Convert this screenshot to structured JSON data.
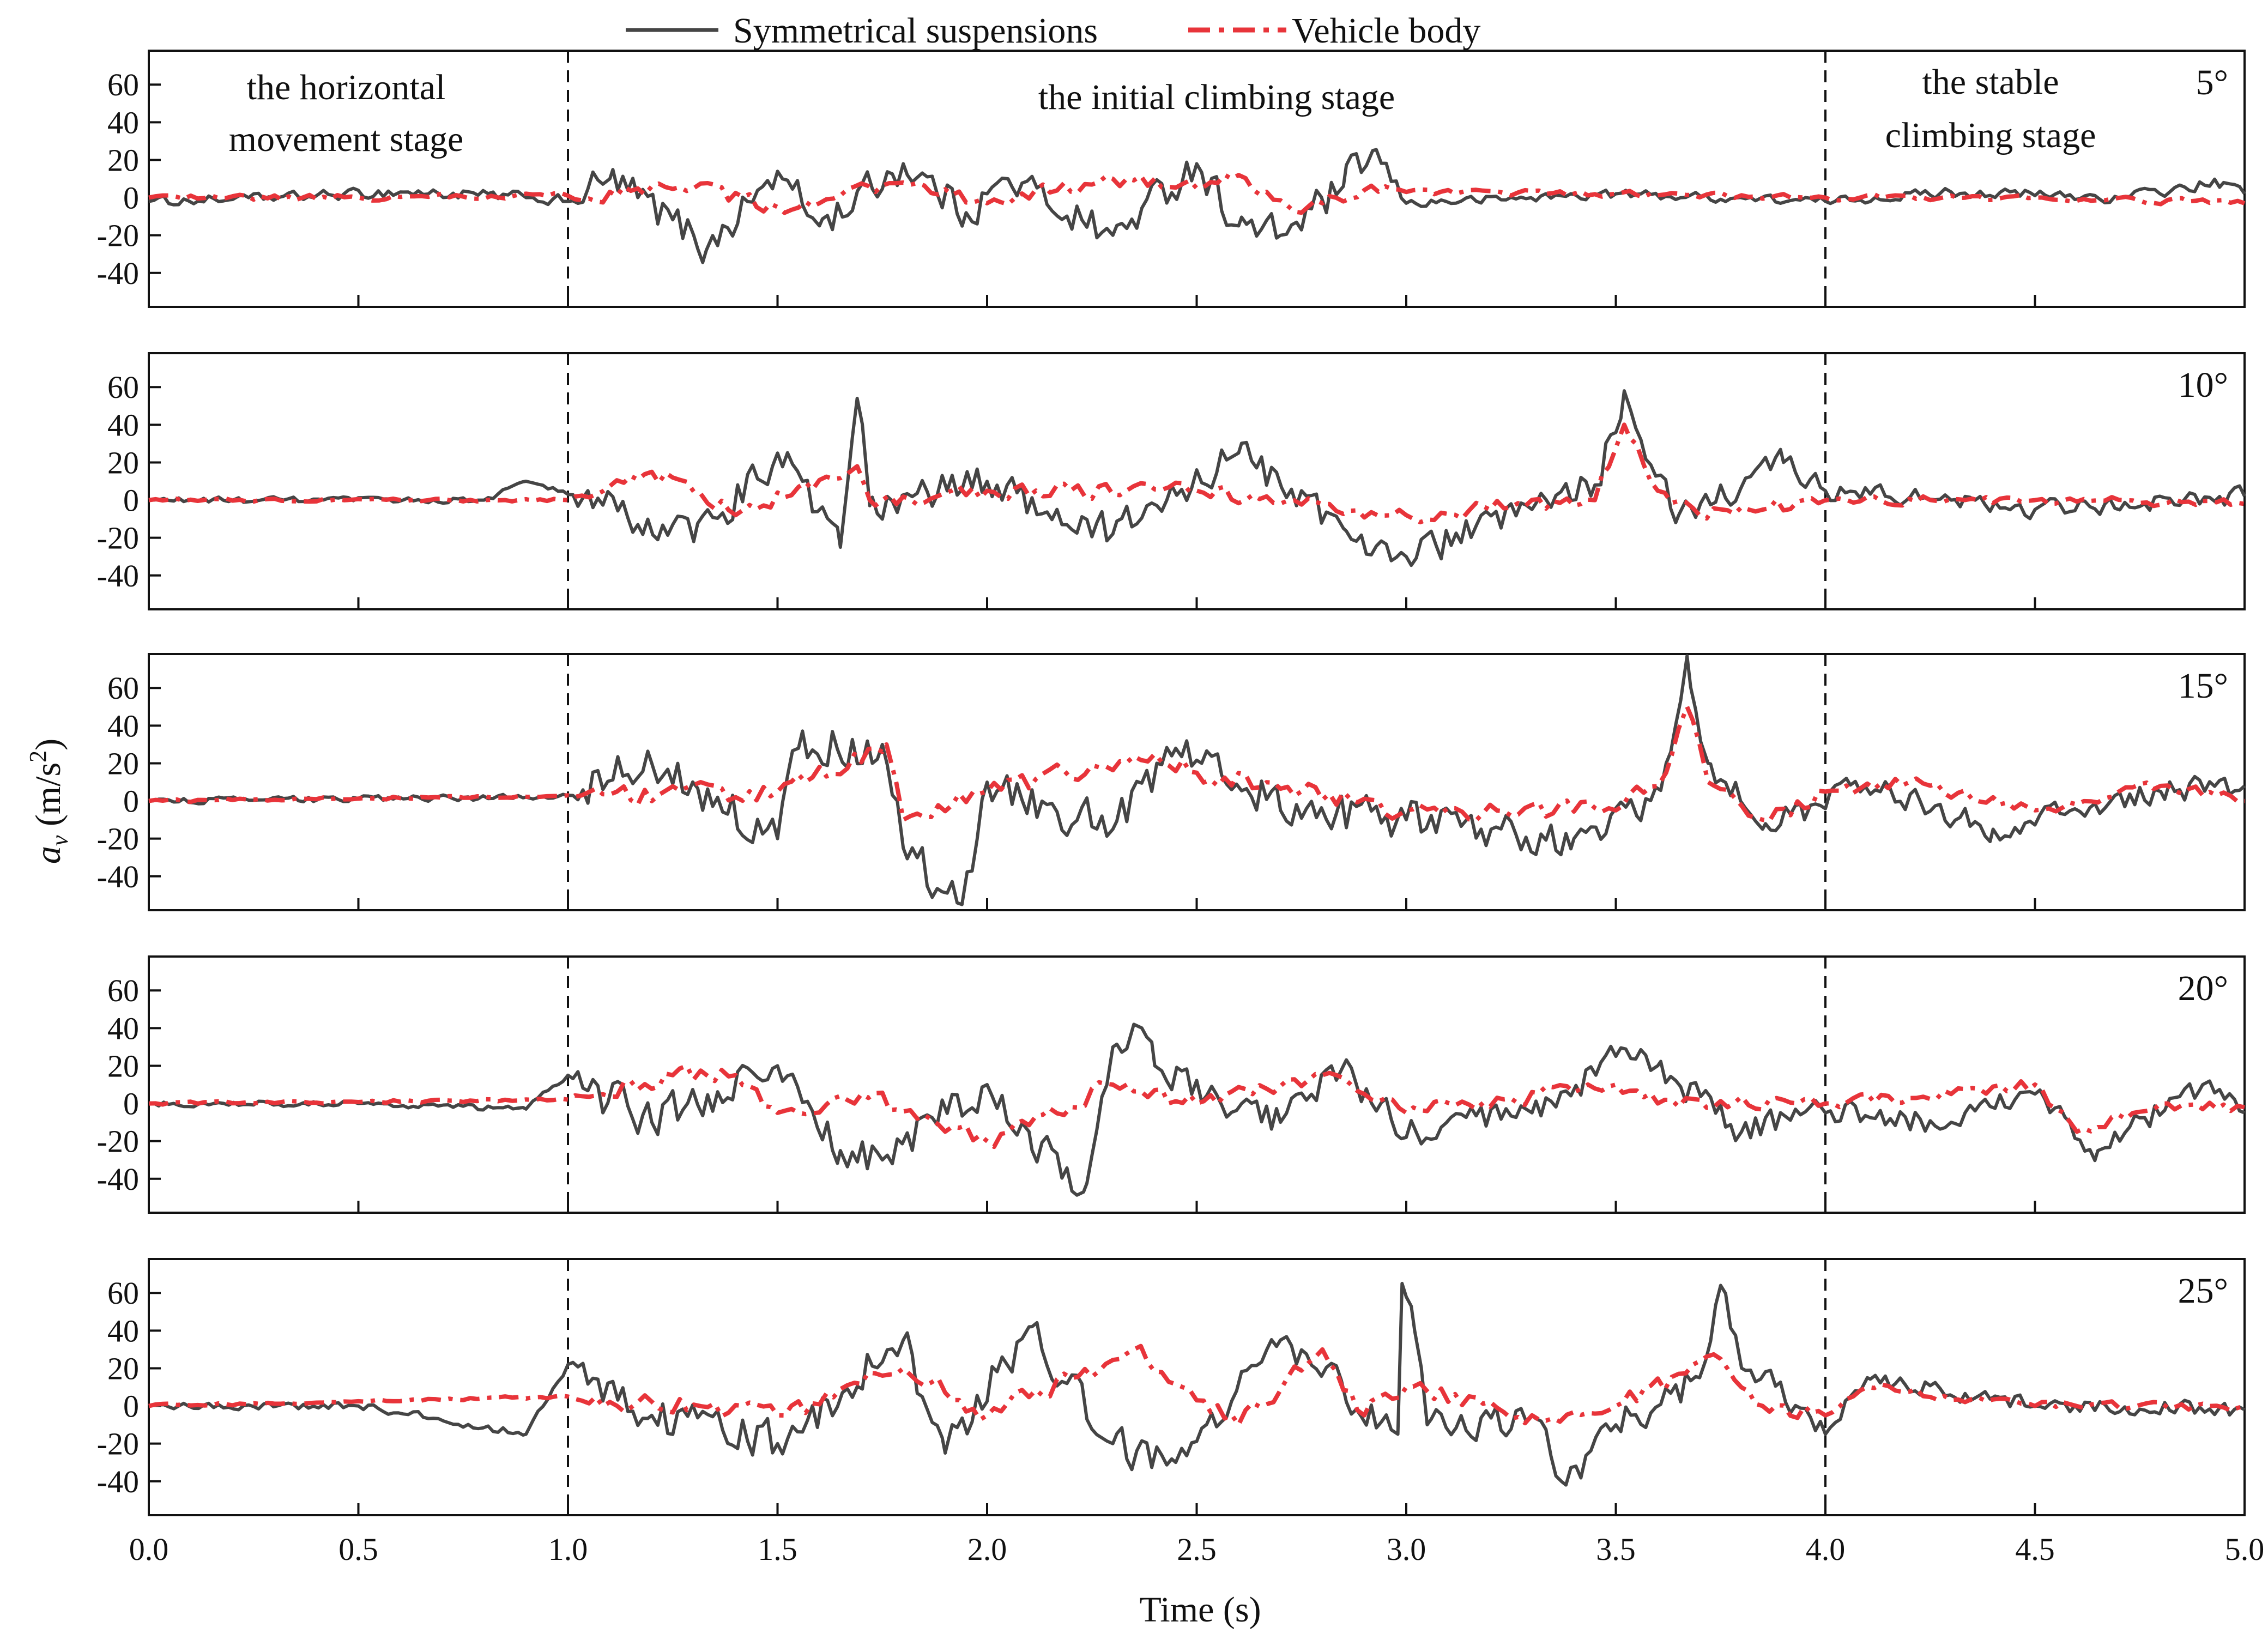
{
  "legend": {
    "placement": "top-center",
    "entries": [
      {
        "label": "Symmetrical suspensions",
        "color": "#454545",
        "style": "solid"
      },
      {
        "label": "Vehicle body",
        "color": "#e8343a",
        "style": "dash-dot"
      }
    ]
  },
  "axes": {
    "xlabel": "Time (s)",
    "ylabel_symbol": "a",
    "ylabel_subscript": "v",
    "ylabel_unit_open": " (m/s",
    "ylabel_unit_power": "2",
    "ylabel_unit_close": ")"
  },
  "stage_labels": {
    "horizontal_line1": "the horizontal",
    "horizontal_line2": "movement stage",
    "initial": "the initial climbing stage",
    "stable_line1": "the stable",
    "stable_line2": "climbing stage"
  },
  "chart_data": [
    {
      "type": "line",
      "panel": "5°",
      "xlim": [
        0,
        5
      ],
      "ylim": [
        -58,
        78
      ],
      "xticks": [
        0,
        0.5,
        1,
        1.5,
        2,
        2.5,
        3,
        3.5,
        4,
        4.5,
        5
      ],
      "yticks": [
        -40,
        -20,
        0,
        20,
        40,
        60
      ],
      "stage_boundaries": [
        1.0,
        4.0
      ],
      "anchors": {
        "susp": [
          [
            0,
            -2
          ],
          [
            0.2,
            -1
          ],
          [
            0.6,
            3
          ],
          [
            0.9,
            0
          ],
          [
            1.0,
            -2
          ],
          [
            1.1,
            10
          ],
          [
            1.3,
            -20
          ],
          [
            1.33,
            -28
          ],
          [
            1.5,
            14
          ],
          [
            1.6,
            -15
          ],
          [
            1.8,
            18
          ],
          [
            1.95,
            -8
          ],
          [
            2.05,
            10
          ],
          [
            2.3,
            -20
          ],
          [
            2.5,
            18
          ],
          [
            2.6,
            -15
          ],
          [
            2.7,
            -20
          ],
          [
            2.85,
            6
          ],
          [
            2.92,
            25
          ],
          [
            3.0,
            -3
          ],
          [
            3.5,
            2
          ],
          [
            4.0,
            -2
          ],
          [
            4.3,
            3
          ],
          [
            4.7,
            0
          ],
          [
            4.95,
            8
          ],
          [
            5.0,
            2
          ]
        ],
        "body": [
          [
            0,
            0
          ],
          [
            0.5,
            0
          ],
          [
            1.0,
            1
          ],
          [
            1.3,
            5
          ],
          [
            1.5,
            -5
          ],
          [
            1.8,
            8
          ],
          [
            2.0,
            -3
          ],
          [
            2.3,
            10
          ],
          [
            2.5,
            5
          ],
          [
            2.6,
            12
          ],
          [
            2.75,
            -8
          ],
          [
            2.9,
            4
          ],
          [
            3.0,
            3
          ],
          [
            3.5,
            2
          ],
          [
            4.0,
            0
          ],
          [
            4.5,
            0
          ],
          [
            5.0,
            -3
          ]
        ]
      },
      "amplitude": {
        "susp": [
          [
            0,
            3
          ],
          [
            1,
            4
          ],
          [
            1.05,
            12
          ],
          [
            2.9,
            12
          ],
          [
            3.0,
            3
          ],
          [
            4,
            3
          ],
          [
            5,
            4
          ]
        ],
        "body": [
          [
            0,
            2
          ],
          [
            1,
            2
          ],
          [
            1.05,
            5
          ],
          [
            2.9,
            5
          ],
          [
            3.0,
            2
          ],
          [
            5,
            2
          ]
        ]
      }
    },
    {
      "type": "line",
      "panel": "10°",
      "xlim": [
        0,
        5
      ],
      "ylim": [
        -58,
        78
      ],
      "xticks": [
        0,
        0.5,
        1,
        1.5,
        2,
        2.5,
        3,
        3.5,
        4,
        4.5,
        5
      ],
      "yticks": [
        -40,
        -20,
        0,
        20,
        40,
        60
      ],
      "stage_boundaries": [
        1.0,
        4.0
      ],
      "anchors": {
        "susp": [
          [
            0,
            0
          ],
          [
            0.8,
            0
          ],
          [
            0.9,
            10
          ],
          [
            1.0,
            3
          ],
          [
            1.3,
            -22
          ],
          [
            1.5,
            25
          ],
          [
            1.65,
            -25
          ],
          [
            1.69,
            54
          ],
          [
            1.72,
            -3
          ],
          [
            2.0,
            10
          ],
          [
            2.3,
            -18
          ],
          [
            2.6,
            25
          ],
          [
            2.85,
            -15
          ],
          [
            3.0,
            -30
          ],
          [
            3.3,
            -5
          ],
          [
            3.45,
            8
          ],
          [
            3.52,
            58
          ],
          [
            3.56,
            32
          ],
          [
            3.65,
            -8
          ],
          [
            3.9,
            20
          ],
          [
            4.0,
            5
          ],
          [
            4.3,
            0
          ],
          [
            4.5,
            -5
          ],
          [
            5.0,
            2
          ]
        ],
        "body": [
          [
            0,
            0
          ],
          [
            1.0,
            0
          ],
          [
            1.2,
            15
          ],
          [
            1.4,
            -8
          ],
          [
            1.69,
            18
          ],
          [
            1.72,
            0
          ],
          [
            2.0,
            5
          ],
          [
            2.5,
            5
          ],
          [
            3.0,
            -8
          ],
          [
            3.45,
            0
          ],
          [
            3.52,
            40
          ],
          [
            3.6,
            5
          ],
          [
            3.7,
            -8
          ],
          [
            4.0,
            0
          ],
          [
            4.5,
            0
          ],
          [
            5.0,
            -2
          ]
        ]
      },
      "amplitude": {
        "susp": [
          [
            0,
            2
          ],
          [
            1,
            2
          ],
          [
            1.05,
            14
          ],
          [
            3.95,
            10
          ],
          [
            4.0,
            6
          ],
          [
            5,
            6
          ]
        ],
        "body": [
          [
            0,
            1
          ],
          [
            1,
            1
          ],
          [
            1.05,
            6
          ],
          [
            3.95,
            5
          ],
          [
            4.0,
            3
          ],
          [
            5,
            3
          ]
        ]
      }
    },
    {
      "type": "line",
      "panel": "15°",
      "xlim": [
        0,
        5
      ],
      "ylim": [
        -58,
        78
      ],
      "xticks": [
        0,
        0.5,
        1,
        1.5,
        2,
        2.5,
        3,
        3.5,
        4,
        4.5,
        5
      ],
      "yticks": [
        -40,
        -20,
        0,
        20,
        40,
        60
      ],
      "stage_boundaries": [
        1.0,
        4.0
      ],
      "anchors": {
        "susp": [
          [
            0,
            0
          ],
          [
            0.9,
            2
          ],
          [
            1.0,
            3
          ],
          [
            1.2,
            20
          ],
          [
            1.5,
            -20
          ],
          [
            1.55,
            28
          ],
          [
            1.75,
            30
          ],
          [
            1.8,
            -25
          ],
          [
            1.94,
            -55
          ],
          [
            2.0,
            10
          ],
          [
            2.3,
            -15
          ],
          [
            2.45,
            28
          ],
          [
            2.55,
            25
          ],
          [
            2.7,
            -5
          ],
          [
            3.0,
            -10
          ],
          [
            3.4,
            -20
          ],
          [
            3.55,
            -8
          ],
          [
            3.62,
            20
          ],
          [
            3.67,
            77
          ],
          [
            3.72,
            20
          ],
          [
            3.85,
            -15
          ],
          [
            3.95,
            -10
          ],
          [
            4.05,
            12
          ],
          [
            4.4,
            -15
          ],
          [
            4.8,
            5
          ],
          [
            5.0,
            8
          ]
        ],
        "body": [
          [
            0,
            0
          ],
          [
            1.0,
            3
          ],
          [
            1.5,
            5
          ],
          [
            1.76,
            30
          ],
          [
            1.8,
            -10
          ],
          [
            2.0,
            5
          ],
          [
            2.4,
            25
          ],
          [
            2.5,
            15
          ],
          [
            3.0,
            -5
          ],
          [
            3.5,
            -5
          ],
          [
            3.62,
            15
          ],
          [
            3.67,
            50
          ],
          [
            3.72,
            10
          ],
          [
            3.85,
            -10
          ],
          [
            4.0,
            5
          ],
          [
            4.2,
            10
          ],
          [
            4.5,
            -5
          ],
          [
            4.8,
            8
          ],
          [
            5.0,
            0
          ]
        ]
      },
      "amplitude": {
        "susp": [
          [
            0,
            2
          ],
          [
            1,
            2
          ],
          [
            1.05,
            15
          ],
          [
            3.95,
            12
          ],
          [
            4.0,
            8
          ],
          [
            5,
            8
          ]
        ],
        "body": [
          [
            0,
            1
          ],
          [
            1,
            1
          ],
          [
            1.05,
            7
          ],
          [
            3.95,
            6
          ],
          [
            4.0,
            4
          ],
          [
            5,
            4
          ]
        ]
      }
    },
    {
      "type": "line",
      "panel": "20°",
      "xlim": [
        0,
        5
      ],
      "ylim": [
        -58,
        78
      ],
      "xticks": [
        0,
        0.5,
        1,
        1.5,
        2,
        2.5,
        3,
        3.5,
        4,
        4.5,
        5
      ],
      "yticks": [
        -40,
        -20,
        0,
        20,
        40,
        60
      ],
      "stage_boundaries": [
        1.0,
        4.0
      ],
      "anchors": {
        "susp": [
          [
            0,
            0
          ],
          [
            0.5,
            0
          ],
          [
            0.9,
            -3
          ],
          [
            1.0,
            15
          ],
          [
            1.2,
            -10
          ],
          [
            1.5,
            20
          ],
          [
            1.65,
            -25
          ],
          [
            1.75,
            -30
          ],
          [
            2.0,
            10
          ],
          [
            2.1,
            -15
          ],
          [
            2.23,
            -47
          ],
          [
            2.3,
            30
          ],
          [
            2.35,
            42
          ],
          [
            2.4,
            20
          ],
          [
            2.7,
            -10
          ],
          [
            2.85,
            20
          ],
          [
            3.0,
            -18
          ],
          [
            3.3,
            -5
          ],
          [
            3.5,
            25
          ],
          [
            3.6,
            20
          ],
          [
            3.8,
            -15
          ],
          [
            4.0,
            -5
          ],
          [
            4.3,
            -10
          ],
          [
            4.5,
            5
          ],
          [
            4.65,
            -25
          ],
          [
            4.9,
            10
          ],
          [
            5.0,
            -5
          ]
        ],
        "body": [
          [
            0,
            0
          ],
          [
            1.0,
            2
          ],
          [
            1.25,
            15
          ],
          [
            1.4,
            15
          ],
          [
            1.5,
            -5
          ],
          [
            1.7,
            5
          ],
          [
            2.0,
            -20
          ],
          [
            2.3,
            10
          ],
          [
            2.5,
            0
          ],
          [
            2.8,
            15
          ],
          [
            2.9,
            5
          ],
          [
            3.0,
            -5
          ],
          [
            3.5,
            10
          ],
          [
            3.6,
            0
          ],
          [
            4.0,
            0
          ],
          [
            4.3,
            5
          ],
          [
            4.5,
            10
          ],
          [
            4.6,
            -15
          ],
          [
            4.8,
            0
          ],
          [
            5.0,
            -2
          ]
        ]
      },
      "amplitude": {
        "susp": [
          [
            0,
            2
          ],
          [
            1,
            2
          ],
          [
            1.05,
            14
          ],
          [
            3.95,
            10
          ],
          [
            4.0,
            8
          ],
          [
            5,
            8
          ]
        ],
        "body": [
          [
            0,
            1
          ],
          [
            1,
            1
          ],
          [
            1.05,
            6
          ],
          [
            3.95,
            5
          ],
          [
            4.0,
            4
          ],
          [
            5,
            4
          ]
        ]
      }
    },
    {
      "type": "line",
      "panel": "25°",
      "xlim": [
        0,
        5
      ],
      "ylim": [
        -58,
        78
      ],
      "xticks": [
        0,
        0.5,
        1,
        1.5,
        2,
        2.5,
        3,
        3.5,
        4,
        4.5,
        5
      ],
      "yticks": [
        -40,
        -20,
        0,
        20,
        40,
        60
      ],
      "stage_boundaries": [
        1.0,
        4.0
      ],
      "anchors": {
        "susp": [
          [
            0,
            0
          ],
          [
            0.5,
            0
          ],
          [
            0.9,
            -15
          ],
          [
            1.0,
            22
          ],
          [
            1.2,
            -5
          ],
          [
            1.5,
            -20
          ],
          [
            1.8,
            35
          ],
          [
            1.9,
            -25
          ],
          [
            2.1,
            42
          ],
          [
            2.3,
            -20
          ],
          [
            2.45,
            -30
          ],
          [
            2.7,
            35
          ],
          [
            2.98,
            -15
          ],
          [
            2.99,
            65
          ],
          [
            3.02,
            40
          ],
          [
            3.05,
            -10
          ],
          [
            3.3,
            -5
          ],
          [
            3.37,
            -40
          ],
          [
            3.5,
            -10
          ],
          [
            3.7,
            15
          ],
          [
            3.75,
            64
          ],
          [
            3.8,
            20
          ],
          [
            4.0,
            -15
          ],
          [
            4.1,
            15
          ],
          [
            4.5,
            0
          ],
          [
            5.0,
            -2
          ]
        ],
        "body": [
          [
            0,
            0
          ],
          [
            1.0,
            5
          ],
          [
            1.5,
            -5
          ],
          [
            1.8,
            20
          ],
          [
            2.0,
            -5
          ],
          [
            2.35,
            30
          ],
          [
            2.6,
            -10
          ],
          [
            2.8,
            30
          ],
          [
            2.9,
            -5
          ],
          [
            3.0,
            10
          ],
          [
            3.3,
            -5
          ],
          [
            3.5,
            0
          ],
          [
            3.75,
            25
          ],
          [
            3.85,
            0
          ],
          [
            4.0,
            -5
          ],
          [
            4.1,
            10
          ],
          [
            4.5,
            0
          ],
          [
            5.0,
            0
          ]
        ]
      },
      "amplitude": {
        "susp": [
          [
            0,
            2
          ],
          [
            1,
            3
          ],
          [
            1.05,
            14
          ],
          [
            3.95,
            12
          ],
          [
            4.0,
            6
          ],
          [
            5,
            5
          ]
        ],
        "body": [
          [
            0,
            1
          ],
          [
            1,
            1
          ],
          [
            1.05,
            7
          ],
          [
            3.95,
            6
          ],
          [
            4.0,
            3
          ],
          [
            5,
            3
          ]
        ]
      }
    }
  ]
}
